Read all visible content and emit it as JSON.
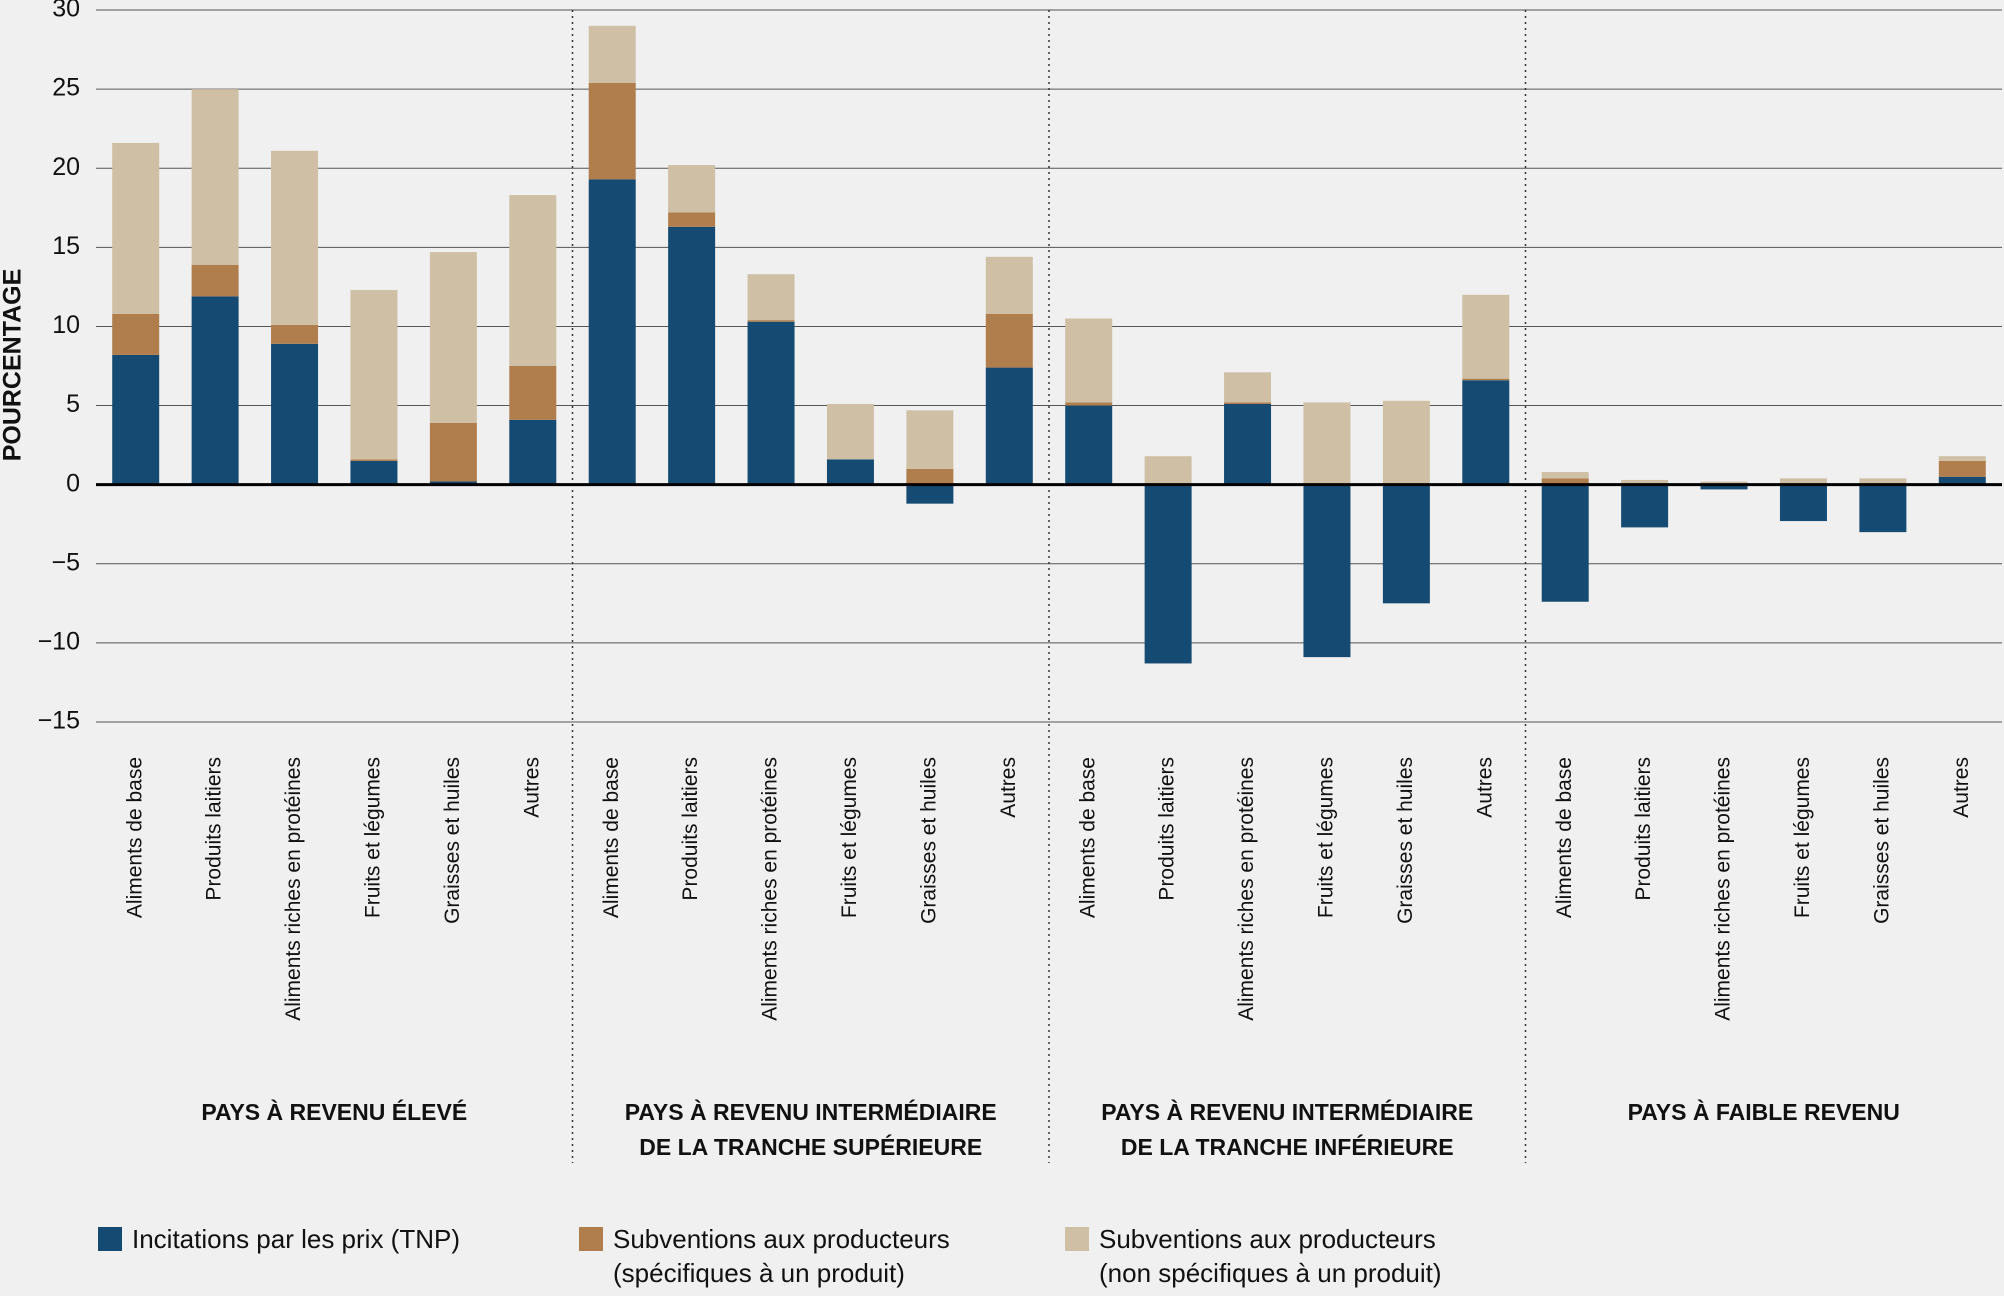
{
  "chart_data": {
    "type": "stacked-bar",
    "y_label": "POURCENTAGE",
    "categories": [
      "Aliments de base",
      "Produits laitiers",
      "Aliments riches en protéines",
      "Fruits et légumes",
      "Graisses et huiles",
      "Autres",
      "Aliments de base",
      "Produits laitiers",
      "Aliments riches en protéines",
      "Fruits et légumes",
      "Graisses et huiles",
      "Autres",
      "Aliments de base",
      "Produits laitiers",
      "Aliments riches en protéines",
      "Fruits et légumes",
      "Graisses et huiles",
      "Autres",
      "Aliments de base",
      "Produits laitiers",
      "Aliments riches en protéines",
      "Fruits et légumes",
      "Graisses et huiles",
      "Autres"
    ],
    "groups": [
      [
        "PAYS À REVENU ÉLEVÉ"
      ],
      [
        "PAYS À REVENU INTERMÉDIAIRE",
        "DE LA TRANCHE SUPÉRIEURE"
      ],
      [
        "PAYS À REVENU INTERMÉDIAIRE",
        "DE LA TRANCHE INFÉRIEURE"
      ],
      [
        "PAYS À FAIBLE REVENU"
      ]
    ],
    "series": [
      {
        "name": "Incitations par les prix (TNP)",
        "color": "#154b73",
        "values": [
          8.2,
          11.9,
          8.9,
          1.5,
          0.2,
          4.1,
          19.3,
          16.3,
          10.3,
          1.6,
          -1.2,
          7.4,
          5.0,
          -11.3,
          5.1,
          -10.9,
          -7.5,
          6.6,
          -7.4,
          -2.7,
          -0.3,
          -2.3,
          -3.0,
          0.5
        ]
      },
      {
        "name": "Subventions aux producteurs (spécifiques à un produit)",
        "color": "#b07d4c",
        "values": [
          2.6,
          2.0,
          1.2,
          0.1,
          3.7,
          3.4,
          6.1,
          0.9,
          0.1,
          0,
          1.0,
          3.4,
          0.2,
          0,
          0.1,
          0,
          0,
          0.1,
          0.4,
          0,
          0,
          0,
          0,
          1.0
        ]
      },
      {
        "name": "Subventions aux producteurs (non spécifiques à un produit)",
        "color": "#cfbfa5",
        "values": [
          10.8,
          11.1,
          11.0,
          10.7,
          10.8,
          10.8,
          3.6,
          3.0,
          2.9,
          3.5,
          3.7,
          3.6,
          5.3,
          1.8,
          1.9,
          5.2,
          5.3,
          5.3,
          0.4,
          0.3,
          0.2,
          0.4,
          0.4,
          0.3
        ]
      }
    ],
    "ylim": [
      -15,
      30
    ],
    "yticks": [
      {
        "value": -15,
        "label": "−15"
      },
      {
        "value": -10,
        "label": "−10"
      },
      {
        "value": -5,
        "label": "−5"
      },
      0,
      5,
      10,
      15,
      20,
      25,
      30
    ],
    "grid": true
  }
}
